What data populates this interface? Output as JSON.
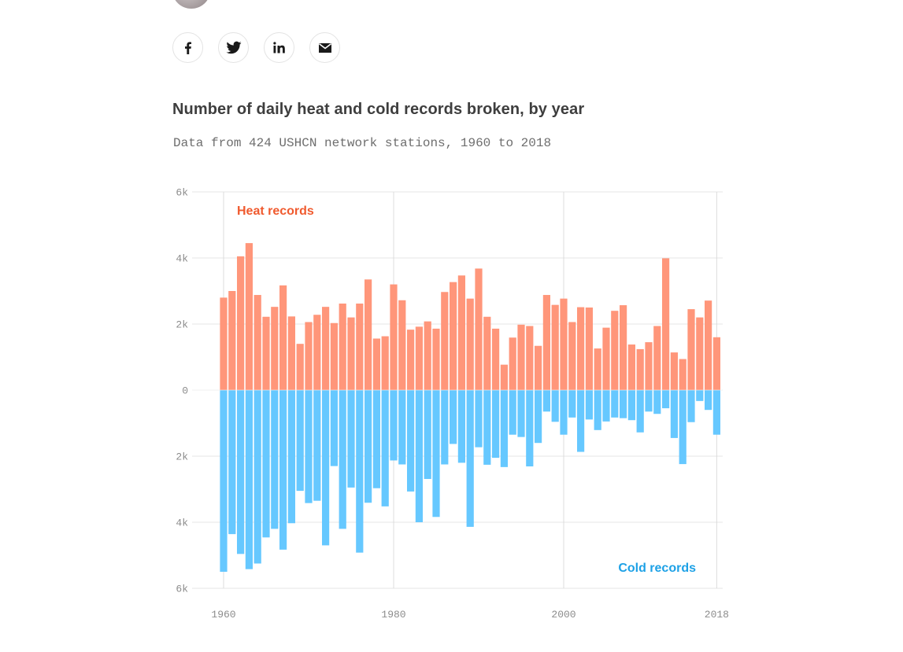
{
  "share": {
    "icons": [
      "facebook-icon",
      "twitter-icon",
      "linkedin-icon",
      "email-icon"
    ]
  },
  "chart_data": {
    "type": "bar",
    "title": "Number of daily heat and cold records broken, by year",
    "subtitle": "Data from 424 USHCN network stations, 1960 to 2018",
    "x": [
      1960,
      1961,
      1962,
      1963,
      1964,
      1965,
      1966,
      1967,
      1968,
      1969,
      1970,
      1971,
      1972,
      1973,
      1974,
      1975,
      1976,
      1977,
      1978,
      1979,
      1980,
      1981,
      1982,
      1983,
      1984,
      1985,
      1986,
      1987,
      1988,
      1989,
      1990,
      1991,
      1992,
      1993,
      1994,
      1995,
      1996,
      1997,
      1998,
      1999,
      2000,
      2001,
      2002,
      2003,
      2004,
      2005,
      2006,
      2007,
      2008,
      2009,
      2010,
      2011,
      2012,
      2013,
      2014,
      2015,
      2016,
      2017,
      2018
    ],
    "series": [
      {
        "name": "Heat records",
        "color": "#ff967a",
        "label_color": "#f05a2e",
        "direction": "up",
        "values": [
          2800,
          3000,
          4050,
          4450,
          2880,
          2220,
          2520,
          3170,
          2230,
          1400,
          2060,
          2280,
          2520,
          2030,
          2620,
          2200,
          2620,
          3350,
          1560,
          1630,
          3200,
          2720,
          1830,
          1920,
          2080,
          1860,
          2970,
          3270,
          3470,
          2770,
          3680,
          2220,
          1860,
          770,
          1590,
          1980,
          1940,
          1340,
          2880,
          2580,
          2770,
          2060,
          2510,
          2500,
          1260,
          1890,
          2400,
          2570,
          1380,
          1240,
          1450,
          1940,
          3990,
          1140,
          940,
          2450,
          2200,
          2710,
          1600
        ]
      },
      {
        "name": "Cold records",
        "color": "#66c8ff",
        "label_color": "#1da1e6",
        "direction": "down",
        "values": [
          5500,
          4360,
          4960,
          5420,
          5250,
          4460,
          4200,
          4830,
          4030,
          3050,
          3420,
          3350,
          4700,
          2300,
          4200,
          2950,
          4920,
          3410,
          2970,
          3520,
          2130,
          2250,
          3070,
          4000,
          2690,
          3840,
          2250,
          1630,
          2200,
          4140,
          1730,
          2260,
          2050,
          2330,
          1350,
          1420,
          2310,
          1600,
          650,
          960,
          1350,
          830,
          1870,
          890,
          1210,
          950,
          830,
          850,
          910,
          1280,
          650,
          720,
          550,
          1450,
          2240,
          970,
          330,
          600,
          1350
        ]
      }
    ],
    "y_ticks": [
      "6k",
      "4k",
      "2k",
      "0",
      "2k",
      "4k",
      "6k"
    ],
    "x_ticks": [
      "1960",
      "1980",
      "2000",
      "2018"
    ],
    "ylim": [
      -6000,
      6000
    ],
    "grid": true
  }
}
